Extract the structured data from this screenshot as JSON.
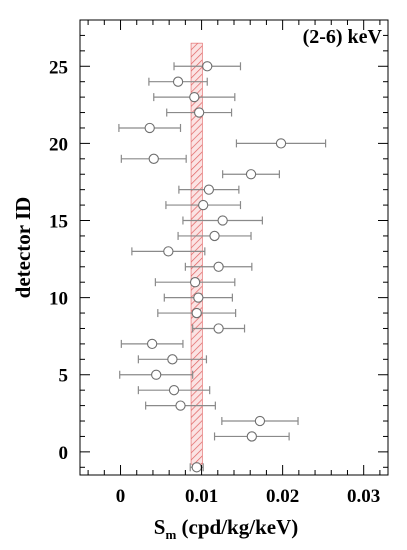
{
  "chart_data": {
    "type": "scatter",
    "title": "(2-6) keV",
    "xlabel_main": "S",
    "xlabel_sub": "m",
    "xlabel_rest": " (cpd/kg/keV)",
    "ylabel": "detector ID",
    "xlim": [
      -0.005,
      0.033
    ],
    "ylim": [
      -1.5,
      28
    ],
    "xticks": [
      0,
      0.01,
      0.02,
      0.03
    ],
    "xtick_labels": [
      "0",
      "0.01",
      "0.02",
      "0.03"
    ],
    "yticks": [
      0,
      5,
      10,
      15,
      20,
      25
    ],
    "ytick_labels": [
      "0",
      "5",
      "10",
      "15",
      "20",
      "25"
    ],
    "band": {
      "xmin": 0.0087,
      "xmax": 0.0101,
      "color": "#e06060"
    },
    "points": [
      {
        "id": 25,
        "x": 0.0107,
        "err": 0.0041
      },
      {
        "id": 24,
        "x": 0.0071,
        "err": 0.0036
      },
      {
        "id": 23,
        "x": 0.0091,
        "err": 0.005
      },
      {
        "id": 22,
        "x": 0.0097,
        "err": 0.004
      },
      {
        "id": 21,
        "x": 0.0036,
        "err": 0.0038
      },
      {
        "id": 20,
        "x": 0.0198,
        "err": 0.0055
      },
      {
        "id": 19,
        "x": 0.0041,
        "err": 0.004
      },
      {
        "id": 18,
        "x": 0.0161,
        "err": 0.0035
      },
      {
        "id": 17,
        "x": 0.0109,
        "err": 0.0037
      },
      {
        "id": 16,
        "x": 0.0102,
        "err": 0.0046
      },
      {
        "id": 15,
        "x": 0.0126,
        "err": 0.0049
      },
      {
        "id": 14,
        "x": 0.0116,
        "err": 0.0045
      },
      {
        "id": 13,
        "x": 0.0059,
        "err": 0.0045
      },
      {
        "id": 12,
        "x": 0.0121,
        "err": 0.0041
      },
      {
        "id": 11,
        "x": 0.0092,
        "err": 0.0049
      },
      {
        "id": 10,
        "x": 0.0096,
        "err": 0.0042
      },
      {
        "id": 9,
        "x": 0.0094,
        "err": 0.0048
      },
      {
        "id": 8,
        "x": 0.0121,
        "err": 0.0032
      },
      {
        "id": 7,
        "x": 0.0039,
        "err": 0.0038
      },
      {
        "id": 6,
        "x": 0.0064,
        "err": 0.0042
      },
      {
        "id": 5,
        "x": 0.0044,
        "err": 0.0045
      },
      {
        "id": 4,
        "x": 0.0066,
        "err": 0.0044
      },
      {
        "id": 3,
        "x": 0.0074,
        "err": 0.0043
      },
      {
        "id": 2,
        "x": 0.0172,
        "err": 0.0047
      },
      {
        "id": 1,
        "x": 0.0162,
        "err": 0.0046
      },
      {
        "id": -1,
        "x": 0.0094,
        "err": 0.0008
      }
    ],
    "grid": false,
    "legend": "none"
  }
}
